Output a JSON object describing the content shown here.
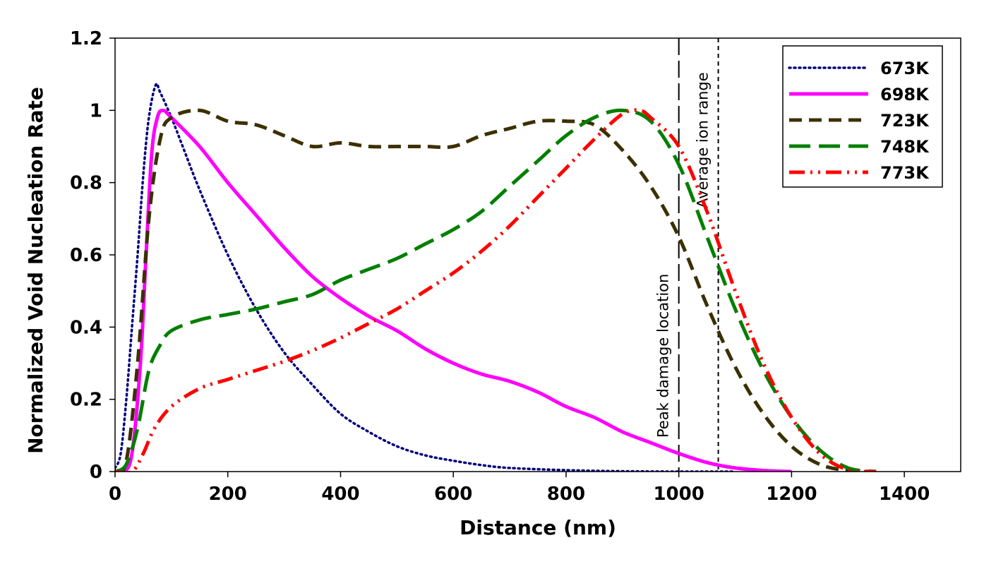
{
  "chart_data": {
    "type": "line",
    "title": "",
    "xlabel": "Distance (nm)",
    "ylabel": "Normalized Void Nucleation Rate",
    "xlim": [
      0,
      1500
    ],
    "ylim": [
      0,
      1.2
    ],
    "xticks": [
      "0",
      "200",
      "400",
      "600",
      "800",
      "1000",
      "1200",
      "1400"
    ],
    "yticks": [
      "0",
      "0.2",
      "0.4",
      "0.6",
      "0.8",
      "1",
      "1.2"
    ],
    "grid": false,
    "legend": "top-right",
    "series": [
      {
        "name": "673K",
        "color": "#00007f",
        "style": "dotted",
        "points": [
          [
            0,
            0.01
          ],
          [
            10,
            0.05
          ],
          [
            20,
            0.2
          ],
          [
            30,
            0.4
          ],
          [
            40,
            0.6
          ],
          [
            50,
            0.82
          ],
          [
            60,
            0.98
          ],
          [
            72,
            1.07
          ],
          [
            80,
            1.05
          ],
          [
            100,
            0.98
          ],
          [
            120,
            0.9
          ],
          [
            150,
            0.78
          ],
          [
            200,
            0.6
          ],
          [
            250,
            0.45
          ],
          [
            300,
            0.33
          ],
          [
            350,
            0.24
          ],
          [
            400,
            0.16
          ],
          [
            450,
            0.11
          ],
          [
            500,
            0.07
          ],
          [
            550,
            0.045
          ],
          [
            600,
            0.03
          ],
          [
            650,
            0.018
          ],
          [
            700,
            0.01
          ],
          [
            800,
            0.004
          ],
          [
            900,
            0.001
          ],
          [
            1000,
            0
          ],
          [
            1100,
            0
          ]
        ]
      },
      {
        "name": "698K",
        "color": "#ff00ff",
        "style": "solid",
        "points": [
          [
            0,
            0
          ],
          [
            15,
            0
          ],
          [
            30,
            0.05
          ],
          [
            45,
            0.3
          ],
          [
            55,
            0.6
          ],
          [
            65,
            0.88
          ],
          [
            75,
            0.98
          ],
          [
            85,
            1.0
          ],
          [
            100,
            0.98
          ],
          [
            150,
            0.9
          ],
          [
            200,
            0.8
          ],
          [
            250,
            0.71
          ],
          [
            300,
            0.62
          ],
          [
            350,
            0.54
          ],
          [
            400,
            0.48
          ],
          [
            450,
            0.43
          ],
          [
            500,
            0.39
          ],
          [
            550,
            0.34
          ],
          [
            600,
            0.3
          ],
          [
            650,
            0.27
          ],
          [
            700,
            0.25
          ],
          [
            750,
            0.22
          ],
          [
            800,
            0.18
          ],
          [
            850,
            0.15
          ],
          [
            900,
            0.11
          ],
          [
            950,
            0.08
          ],
          [
            1000,
            0.05
          ],
          [
            1050,
            0.025
          ],
          [
            1100,
            0.01
          ],
          [
            1150,
            0.003
          ],
          [
            1200,
            0
          ]
        ]
      },
      {
        "name": "723K",
        "color": "#3b3000",
        "style": "dashed",
        "points": [
          [
            0,
            0
          ],
          [
            20,
            0.03
          ],
          [
            40,
            0.3
          ],
          [
            60,
            0.7
          ],
          [
            80,
            0.92
          ],
          [
            100,
            0.98
          ],
          [
            150,
            1.0
          ],
          [
            200,
            0.97
          ],
          [
            250,
            0.96
          ],
          [
            300,
            0.93
          ],
          [
            350,
            0.9
          ],
          [
            400,
            0.91
          ],
          [
            450,
            0.9
          ],
          [
            500,
            0.9
          ],
          [
            550,
            0.9
          ],
          [
            600,
            0.9
          ],
          [
            650,
            0.93
          ],
          [
            700,
            0.95
          ],
          [
            750,
            0.97
          ],
          [
            800,
            0.97
          ],
          [
            850,
            0.96
          ],
          [
            900,
            0.89
          ],
          [
            950,
            0.79
          ],
          [
            1000,
            0.65
          ],
          [
            1050,
            0.46
          ],
          [
            1100,
            0.29
          ],
          [
            1150,
            0.16
          ],
          [
            1200,
            0.07
          ],
          [
            1250,
            0.02
          ],
          [
            1300,
            0.003
          ],
          [
            1350,
            0
          ]
        ]
      },
      {
        "name": "748K",
        "color": "#007f00",
        "style": "long-dash",
        "points": [
          [
            0,
            0
          ],
          [
            20,
            0.02
          ],
          [
            40,
            0.12
          ],
          [
            60,
            0.28
          ],
          [
            80,
            0.35
          ],
          [
            100,
            0.39
          ],
          [
            150,
            0.42
          ],
          [
            200,
            0.435
          ],
          [
            250,
            0.45
          ],
          [
            300,
            0.47
          ],
          [
            350,
            0.49
          ],
          [
            400,
            0.53
          ],
          [
            450,
            0.56
          ],
          [
            500,
            0.59
          ],
          [
            550,
            0.63
          ],
          [
            600,
            0.67
          ],
          [
            650,
            0.72
          ],
          [
            700,
            0.79
          ],
          [
            750,
            0.86
          ],
          [
            800,
            0.93
          ],
          [
            850,
            0.98
          ],
          [
            900,
            1.0
          ],
          [
            950,
            0.97
          ],
          [
            1000,
            0.85
          ],
          [
            1050,
            0.65
          ],
          [
            1100,
            0.45
          ],
          [
            1150,
            0.28
          ],
          [
            1200,
            0.15
          ],
          [
            1250,
            0.06
          ],
          [
            1300,
            0.01
          ],
          [
            1350,
            0
          ]
        ]
      },
      {
        "name": "773K",
        "color": "#ff0000",
        "style": "dash-dot-dot",
        "points": [
          [
            0,
            0
          ],
          [
            30,
            0
          ],
          [
            50,
            0.05
          ],
          [
            70,
            0.12
          ],
          [
            100,
            0.18
          ],
          [
            150,
            0.23
          ],
          [
            200,
            0.255
          ],
          [
            250,
            0.28
          ],
          [
            300,
            0.305
          ],
          [
            350,
            0.335
          ],
          [
            400,
            0.37
          ],
          [
            450,
            0.41
          ],
          [
            500,
            0.45
          ],
          [
            550,
            0.5
          ],
          [
            600,
            0.55
          ],
          [
            650,
            0.61
          ],
          [
            700,
            0.68
          ],
          [
            750,
            0.76
          ],
          [
            800,
            0.84
          ],
          [
            850,
            0.92
          ],
          [
            900,
            0.99
          ],
          [
            930,
            1.0
          ],
          [
            950,
            0.98
          ],
          [
            1000,
            0.9
          ],
          [
            1050,
            0.72
          ],
          [
            1100,
            0.5
          ],
          [
            1150,
            0.3
          ],
          [
            1200,
            0.15
          ],
          [
            1250,
            0.05
          ],
          [
            1300,
            0.005
          ],
          [
            1350,
            0
          ]
        ]
      }
    ],
    "markers": [
      {
        "x": 1000,
        "label": "Peak damage location",
        "style": "long-dash"
      },
      {
        "x": 1070,
        "label": "Average ion range",
        "style": "short-dash"
      }
    ]
  }
}
